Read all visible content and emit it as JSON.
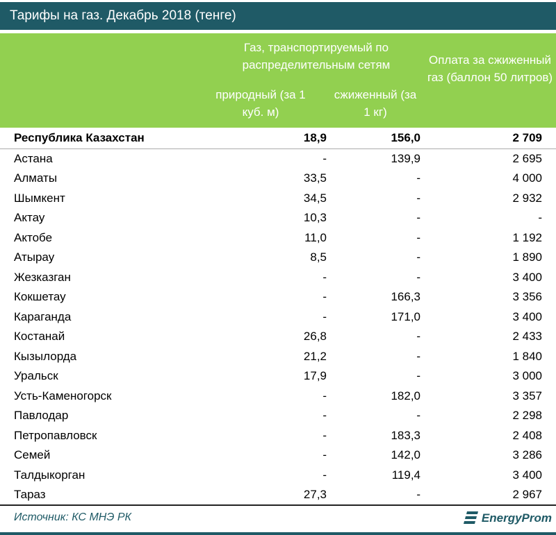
{
  "title": "Тарифы на газ. Декабрь 2018 (тенге)",
  "header": {
    "group": "Газ, транспортируемый по распределительным сетям",
    "sub1": "природный (за 1 куб. м)",
    "sub2": "сжиженный (за 1 кг)",
    "col3": "Оплата за сжиженный газ (баллон 50 литров)"
  },
  "rows": [
    {
      "name": "Республика Казахстан",
      "natural": "18,9",
      "liquefied": "156,0",
      "cylinder": "2 709"
    },
    {
      "name": "Астана",
      "natural": "-",
      "liquefied": "139,9",
      "cylinder": "2 695"
    },
    {
      "name": "Алматы",
      "natural": "33,5",
      "liquefied": "-",
      "cylinder": "4 000"
    },
    {
      "name": "Шымкент",
      "natural": "34,5",
      "liquefied": "-",
      "cylinder": "2 932"
    },
    {
      "name": "Актау",
      "natural": "10,3",
      "liquefied": "-",
      "cylinder": "-"
    },
    {
      "name": "Актобе",
      "natural": "11,0",
      "liquefied": "-",
      "cylinder": "1 192"
    },
    {
      "name": "Атырау",
      "natural": "8,5",
      "liquefied": "-",
      "cylinder": "1 890"
    },
    {
      "name": "Жезказган",
      "natural": "-",
      "liquefied": "-",
      "cylinder": "3 400"
    },
    {
      "name": "Кокшетау",
      "natural": "-",
      "liquefied": "166,3",
      "cylinder": "3 356"
    },
    {
      "name": "Караганда",
      "natural": "-",
      "liquefied": "171,0",
      "cylinder": "3 400"
    },
    {
      "name": "Костанай",
      "natural": "26,8",
      "liquefied": "-",
      "cylinder": "2 433"
    },
    {
      "name": "Кызылорда",
      "natural": "21,2",
      "liquefied": "-",
      "cylinder": "1 840"
    },
    {
      "name": "Уральск",
      "natural": "17,9",
      "liquefied": "-",
      "cylinder": "3 000"
    },
    {
      "name": "Усть-Каменогорск",
      "natural": "-",
      "liquefied": "182,0",
      "cylinder": "3 357"
    },
    {
      "name": "Павлодар",
      "natural": "-",
      "liquefied": "-",
      "cylinder": "2 298"
    },
    {
      "name": "Петропавловск",
      "natural": "-",
      "liquefied": "183,3",
      "cylinder": "2 408"
    },
    {
      "name": "Семей",
      "natural": "-",
      "liquefied": "142,0",
      "cylinder": "3 286"
    },
    {
      "name": "Талдыкорган",
      "natural": "-",
      "liquefied": "119,4",
      "cylinder": "3 400"
    },
    {
      "name": "Тараз",
      "natural": "27,3",
      "liquefied": "-",
      "cylinder": "2 967"
    }
  ],
  "source": "Источник: КС МНЭ РК",
  "logo": "EnergyProm"
}
